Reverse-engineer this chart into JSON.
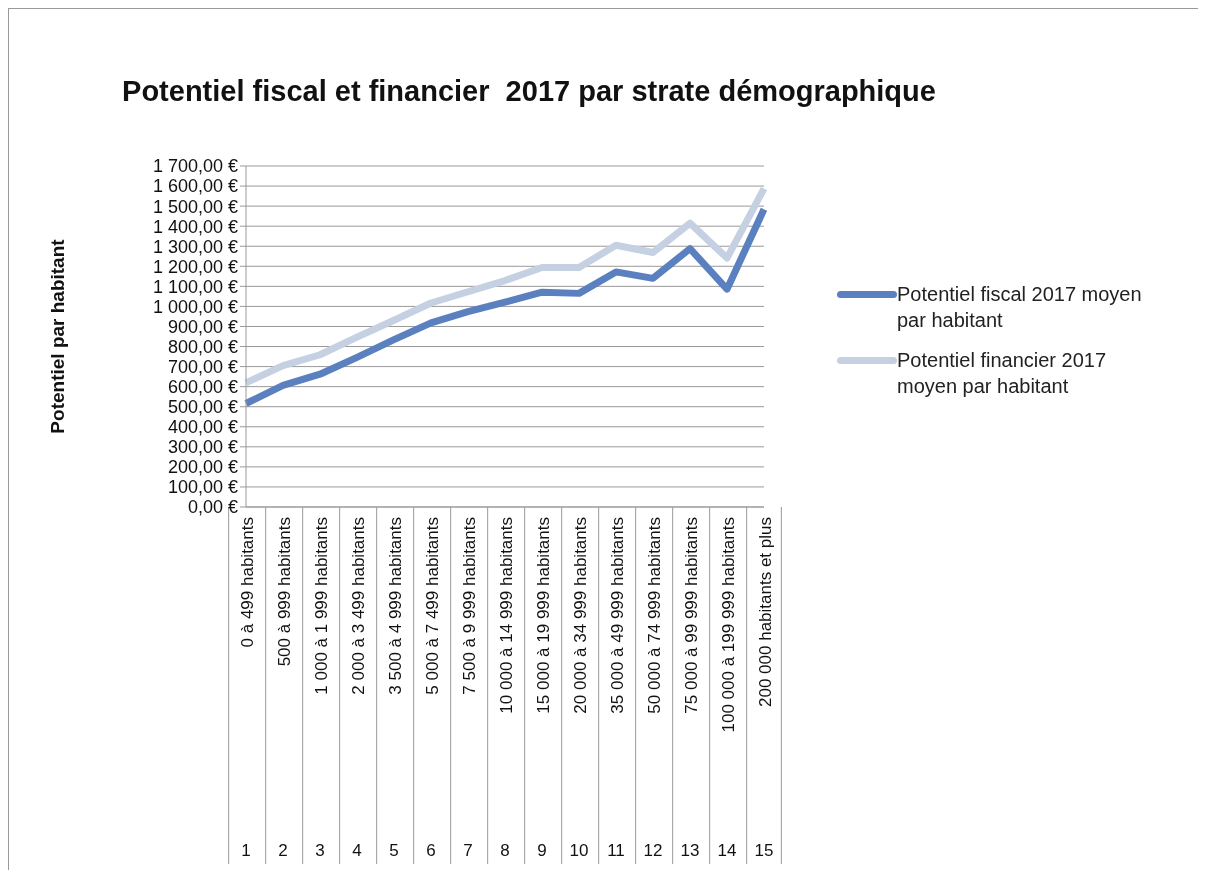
{
  "chart_data": {
    "type": "line",
    "title": "Potentiel fiscal et financier  2017 par strate démographique",
    "ylabel": "Potentiel par habitant",
    "categories": [
      "0 à 499 habitants",
      "500 à 999 habitants",
      "1 000 à 1 999 habitants",
      "2 000 à 3 499 habitants",
      "3 500 à 4 999 habitants",
      "5 000 à 7 499 habitants",
      "7 500 à 9 999 habitants",
      "10 000 à 14 999 habitants",
      "15 000 à 19 999 habitants",
      "20 000 à 34 999 habitants",
      "35 000 à 49 999 habitants",
      "50 000 à 74 999 habitants",
      "75 000 à 99 999 habitants",
      "100 000 à 199 999 habitants",
      "200 000 habitants et plus"
    ],
    "annotations": [
      "1",
      "2",
      "3",
      "4",
      "5",
      "6",
      "7",
      "8",
      "9",
      "10",
      "11",
      "12",
      "13",
      "14",
      "15"
    ],
    "series": [
      {
        "name": "Potentiel fiscal 2017 moyen par habitant",
        "color": "#5b80bf",
        "values": [
          516,
          606,
          662,
          746,
          834,
          918,
          974,
          1021,
          1071,
          1065,
          1172,
          1140,
          1288,
          1086,
          1484
        ]
      },
      {
        "name": "Potentiel financier  2017 moyen par habitant",
        "color": "#c6d0e3",
        "values": [
          619,
          705,
          759,
          847,
          931,
          1017,
          1073,
          1129,
          1194,
          1194,
          1305,
          1269,
          1415,
          1241,
          1587
        ]
      }
    ],
    "ylim": [
      0,
      1700
    ],
    "yticks": [
      {
        "value": 0,
        "label": "0,00 €"
      },
      {
        "value": 100,
        "label": "100,00 €"
      },
      {
        "value": 200,
        "label": "200,00 €"
      },
      {
        "value": 300,
        "label": "300,00 €"
      },
      {
        "value": 400,
        "label": "400,00 €"
      },
      {
        "value": 500,
        "label": "500,00 €"
      },
      {
        "value": 600,
        "label": "600,00 €"
      },
      {
        "value": 700,
        "label": "700,00 €"
      },
      {
        "value": 800,
        "label": "800,00 €"
      },
      {
        "value": 900,
        "label": "900,00 €"
      },
      {
        "value": 1000,
        "label": "1 000,00 €"
      },
      {
        "value": 1100,
        "label": "1 100,00 €"
      },
      {
        "value": 1200,
        "label": "1 200,00 €"
      },
      {
        "value": 1300,
        "label": "1 300,00 €"
      },
      {
        "value": 1400,
        "label": "1 400,00 €"
      },
      {
        "value": 1500,
        "label": "1 500,00 €"
      },
      {
        "value": 1600,
        "label": "1 600,00 €"
      },
      {
        "value": 1700,
        "label": "1 700,00 €"
      }
    ],
    "grid": "y",
    "legend": "right",
    "marker": "none",
    "line_style": "solid"
  }
}
